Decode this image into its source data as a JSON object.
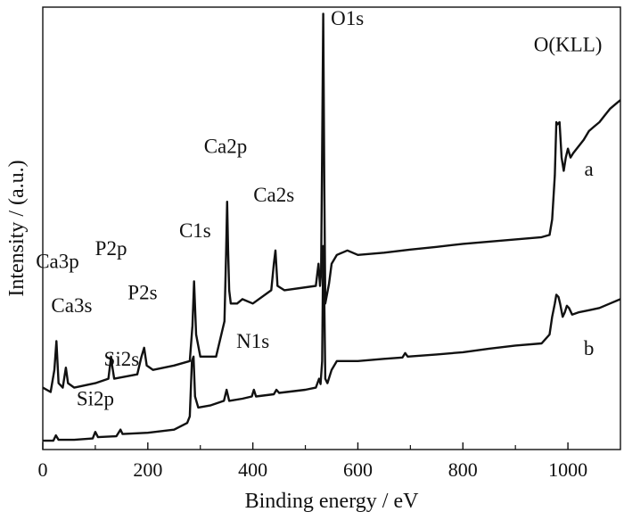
{
  "chart_data": {
    "type": "line",
    "xlabel": "Binding energy / eV",
    "ylabel": "Intensity / (a.u.)",
    "xlim": [
      0,
      1100
    ],
    "x_ticks": [
      "0",
      "200",
      "400",
      "600",
      "800",
      "1000"
    ],
    "y_ticks": "none",
    "grid": false,
    "legend": "none",
    "line_color": "#111111",
    "series": [
      {
        "name": "a",
        "label_x": 1040,
        "points": [
          [
            0,
            0.14
          ],
          [
            15,
            0.13
          ],
          [
            22,
            0.18
          ],
          [
            26,
            0.245
          ],
          [
            30,
            0.15
          ],
          [
            38,
            0.14
          ],
          [
            44,
            0.185
          ],
          [
            48,
            0.15
          ],
          [
            60,
            0.14
          ],
          [
            100,
            0.15
          ],
          [
            125,
            0.16
          ],
          [
            130,
            0.21
          ],
          [
            132,
            0.19
          ],
          [
            136,
            0.16
          ],
          [
            180,
            0.17
          ],
          [
            188,
            0.21
          ],
          [
            193,
            0.23
          ],
          [
            198,
            0.19
          ],
          [
            210,
            0.18
          ],
          [
            250,
            0.19
          ],
          [
            280,
            0.2
          ],
          [
            285,
            0.28
          ],
          [
            288,
            0.38
          ],
          [
            292,
            0.26
          ],
          [
            300,
            0.21
          ],
          [
            330,
            0.21
          ],
          [
            340,
            0.26
          ],
          [
            346,
            0.29
          ],
          [
            349,
            0.44
          ],
          [
            351,
            0.56
          ],
          [
            353,
            0.45
          ],
          [
            355,
            0.36
          ],
          [
            358,
            0.33
          ],
          [
            370,
            0.33
          ],
          [
            380,
            0.34
          ],
          [
            400,
            0.33
          ],
          [
            435,
            0.36
          ],
          [
            440,
            0.42
          ],
          [
            443,
            0.45
          ],
          [
            447,
            0.37
          ],
          [
            460,
            0.36
          ],
          [
            520,
            0.37
          ],
          [
            525,
            0.42
          ],
          [
            528,
            0.37
          ],
          [
            530,
            0.4
          ],
          [
            532,
            0.68
          ],
          [
            534,
            0.985
          ],
          [
            536,
            0.6
          ],
          [
            538,
            0.33
          ],
          [
            545,
            0.375
          ],
          [
            550,
            0.42
          ],
          [
            560,
            0.44
          ],
          [
            570,
            0.445
          ],
          [
            580,
            0.45
          ],
          [
            600,
            0.44
          ],
          [
            650,
            0.445
          ],
          [
            700,
            0.452
          ],
          [
            750,
            0.458
          ],
          [
            800,
            0.465
          ],
          [
            850,
            0.47
          ],
          [
            900,
            0.475
          ],
          [
            950,
            0.48
          ],
          [
            965,
            0.485
          ],
          [
            970,
            0.52
          ],
          [
            975,
            0.62
          ],
          [
            978,
            0.74
          ],
          [
            980,
            0.735
          ],
          [
            984,
            0.74
          ],
          [
            988,
            0.66
          ],
          [
            992,
            0.63
          ],
          [
            996,
            0.66
          ],
          [
            1000,
            0.68
          ],
          [
            1005,
            0.66
          ],
          [
            1010,
            0.67
          ],
          [
            1020,
            0.685
          ],
          [
            1030,
            0.7
          ],
          [
            1040,
            0.72
          ],
          [
            1050,
            0.73
          ],
          [
            1060,
            0.74
          ],
          [
            1070,
            0.755
          ],
          [
            1080,
            0.77
          ],
          [
            1090,
            0.78
          ],
          [
            1100,
            0.79
          ]
        ]
      },
      {
        "name": "b",
        "label_x": 1040,
        "points": [
          [
            0,
            0.02
          ],
          [
            20,
            0.02
          ],
          [
            25,
            0.032
          ],
          [
            30,
            0.022
          ],
          [
            60,
            0.022
          ],
          [
            95,
            0.025
          ],
          [
            100,
            0.04
          ],
          [
            105,
            0.028
          ],
          [
            140,
            0.03
          ],
          [
            148,
            0.045
          ],
          [
            152,
            0.035
          ],
          [
            200,
            0.038
          ],
          [
            250,
            0.045
          ],
          [
            275,
            0.06
          ],
          [
            280,
            0.075
          ],
          [
            284,
            0.2
          ],
          [
            287,
            0.21
          ],
          [
            290,
            0.12
          ],
          [
            296,
            0.095
          ],
          [
            320,
            0.1
          ],
          [
            345,
            0.11
          ],
          [
            350,
            0.135
          ],
          [
            355,
            0.11
          ],
          [
            380,
            0.115
          ],
          [
            398,
            0.12
          ],
          [
            402,
            0.135
          ],
          [
            406,
            0.12
          ],
          [
            440,
            0.125
          ],
          [
            445,
            0.135
          ],
          [
            450,
            0.128
          ],
          [
            500,
            0.135
          ],
          [
            520,
            0.14
          ],
          [
            526,
            0.16
          ],
          [
            529,
            0.148
          ],
          [
            532,
            0.2
          ],
          [
            534,
            0.46
          ],
          [
            536,
            0.34
          ],
          [
            538,
            0.16
          ],
          [
            542,
            0.15
          ],
          [
            550,
            0.18
          ],
          [
            560,
            0.2
          ],
          [
            575,
            0.2
          ],
          [
            600,
            0.2
          ],
          [
            650,
            0.205
          ],
          [
            685,
            0.208
          ],
          [
            690,
            0.218
          ],
          [
            695,
            0.21
          ],
          [
            750,
            0.215
          ],
          [
            800,
            0.22
          ],
          [
            850,
            0.228
          ],
          [
            900,
            0.235
          ],
          [
            950,
            0.24
          ],
          [
            965,
            0.26
          ],
          [
            970,
            0.3
          ],
          [
            975,
            0.33
          ],
          [
            978,
            0.35
          ],
          [
            982,
            0.345
          ],
          [
            985,
            0.33
          ],
          [
            990,
            0.3
          ],
          [
            994,
            0.31
          ],
          [
            998,
            0.325
          ],
          [
            1002,
            0.32
          ],
          [
            1008,
            0.305
          ],
          [
            1020,
            0.31
          ],
          [
            1040,
            0.315
          ],
          [
            1060,
            0.32
          ],
          [
            1080,
            0.33
          ],
          [
            1100,
            0.34
          ]
        ]
      }
    ],
    "peak_labels": [
      {
        "text": "O1s",
        "x": 580,
        "y": 0.96
      },
      {
        "text": "O(KLL)",
        "x": 1000,
        "y": 0.9
      },
      {
        "text": "Ca2p",
        "x": 348,
        "y": 0.67
      },
      {
        "text": "Ca2s",
        "x": 440,
        "y": 0.56
      },
      {
        "text": "C1s",
        "x": 290,
        "y": 0.48
      },
      {
        "text": "P2p",
        "x": 130,
        "y": 0.44
      },
      {
        "text": "Ca3p",
        "x": 28,
        "y": 0.41
      },
      {
        "text": "P2s",
        "x": 190,
        "y": 0.34
      },
      {
        "text": "Ca3s",
        "x": 55,
        "y": 0.31
      },
      {
        "text": "N1s",
        "x": 400,
        "y": 0.23
      },
      {
        "text": "Si2s",
        "x": 150,
        "y": 0.19
      },
      {
        "text": "Si2p",
        "x": 100,
        "y": 0.1
      }
    ]
  }
}
